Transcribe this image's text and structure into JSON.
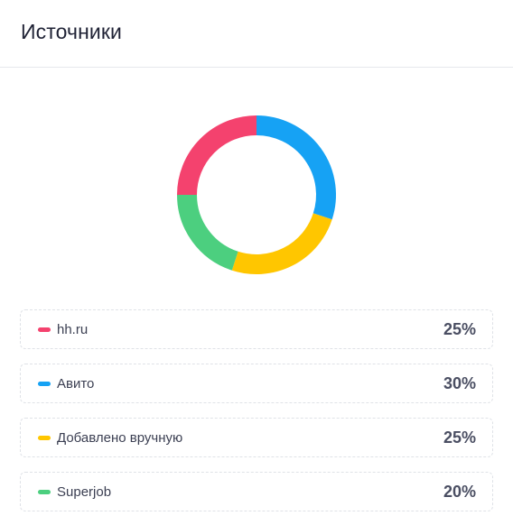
{
  "header": {
    "title": "Источники"
  },
  "chart_data": {
    "type": "pie",
    "variant": "donut",
    "categories": [
      "hh.ru",
      "Авито",
      "Добавлено вручную",
      "Superjob"
    ],
    "values": [
      25,
      30,
      25,
      20
    ],
    "unit": "%",
    "colors": [
      "#f4426e",
      "#16a2f4",
      "#ffc600",
      "#4ccf7f"
    ],
    "segment_order": [
      {
        "name": "hh.ru",
        "value": 25,
        "color": "#f4426e"
      },
      {
        "name": "Авито",
        "value": 30,
        "color": "#16a2f4"
      },
      {
        "name": "Добавлено вручную",
        "value": 25,
        "color": "#ffc600"
      },
      {
        "name": "Superjob",
        "value": 20,
        "color": "#4ccf7f"
      }
    ],
    "legend_placement": "bottom",
    "legend": [
      {
        "label": "hh.ru",
        "value": "25%",
        "color": "#f4426e"
      },
      {
        "label": "Авито",
        "value": "30%",
        "color": "#16a2f4"
      },
      {
        "label": "Добавлено вручную",
        "value": "25%",
        "color": "#ffc600"
      },
      {
        "label": "Superjob",
        "value": "20%",
        "color": "#4ccf7f"
      }
    ]
  }
}
